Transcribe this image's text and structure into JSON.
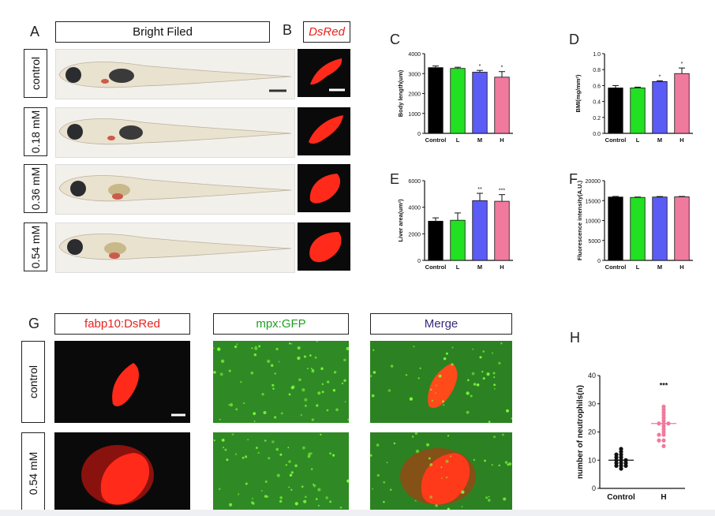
{
  "panelA": {
    "letter": "A",
    "header": "Bright Filed",
    "rows": [
      "control",
      "0.18 mM",
      "0.36 mM",
      "0.54 mM"
    ]
  },
  "panelB": {
    "letter": "B",
    "header": "DsRed",
    "header_color": "#e8231f"
  },
  "panelG": {
    "letter": "G",
    "headers": [
      {
        "text": "fabp10:DsRed",
        "color": "#e8231f"
      },
      {
        "text": "mpx:GFP",
        "color": "#1f9e1f"
      },
      {
        "text": "Merge",
        "color": "#3a2a7a"
      }
    ],
    "rows": [
      "control",
      "0.54 mM"
    ]
  },
  "colors": {
    "control": "#000000",
    "L": "#22e022",
    "M": "#5b5bf5",
    "H": "#f07a9e",
    "red_signal": "#ff2a1a",
    "green_dots": "#7dff3a"
  },
  "chart_data": [
    {
      "id": "C",
      "letter": "C",
      "type": "bar",
      "categories": [
        "Control",
        "L",
        "M",
        "H"
      ],
      "values": [
        3300,
        3260,
        3070,
        2820
      ],
      "errors": [
        80,
        60,
        90,
        280
      ],
      "significance": [
        "",
        "",
        "*",
        "*"
      ],
      "ylabel": "Body length(um)",
      "ylim": [
        0,
        4000
      ],
      "yticks": [
        0,
        1000,
        2000,
        3000,
        4000
      ]
    },
    {
      "id": "D",
      "letter": "D",
      "type": "bar",
      "categories": [
        "Control",
        "L",
        "M",
        "H"
      ],
      "values": [
        0.57,
        0.57,
        0.65,
        0.75
      ],
      "errors": [
        0.03,
        0.01,
        0.01,
        0.07
      ],
      "significance": [
        "",
        "",
        "*",
        "*"
      ],
      "ylabel": "BMI(mg/mm²)",
      "ylim": [
        0,
        1.0
      ],
      "yticks": [
        0.0,
        0.2,
        0.4,
        0.6,
        0.8,
        1.0
      ]
    },
    {
      "id": "E",
      "letter": "E",
      "type": "bar",
      "categories": [
        "Control",
        "L",
        "M",
        "H"
      ],
      "values": [
        2950,
        3020,
        4500,
        4450
      ],
      "errors": [
        250,
        550,
        550,
        500
      ],
      "significance": [
        "",
        "",
        "**",
        "***"
      ],
      "ylabel": "Liver area(um²)",
      "ylim": [
        0,
        6000
      ],
      "yticks": [
        0,
        2000,
        4000,
        6000
      ]
    },
    {
      "id": "F",
      "letter": "F",
      "type": "bar",
      "categories": [
        "Control",
        "L",
        "M",
        "H"
      ],
      "values": [
        15900,
        15800,
        15900,
        15950
      ],
      "errors": [
        150,
        100,
        120,
        100
      ],
      "significance": [
        "",
        "",
        "",
        ""
      ],
      "ylabel": "Fluorescence intensity(A.U.)",
      "ylim": [
        0,
        20000
      ],
      "yticks": [
        0,
        5000,
        10000,
        15000,
        20000
      ]
    },
    {
      "id": "H",
      "letter": "H",
      "type": "scatter",
      "categories": [
        "Control",
        "H"
      ],
      "series": [
        {
          "category": "Control",
          "points": [
            7,
            8,
            8,
            8,
            9,
            9,
            9,
            10,
            10,
            10,
            11,
            11,
            12,
            12,
            13,
            14
          ],
          "mean": 10
        },
        {
          "category": "H",
          "points": [
            15,
            17,
            17,
            19,
            19,
            20,
            21,
            22,
            23,
            23,
            23,
            24,
            25,
            26,
            27,
            28,
            29
          ],
          "mean": 23
        }
      ],
      "significance": [
        "",
        "***"
      ],
      "ylabel": "number of neutrophils(n)",
      "ylim": [
        0,
        40
      ],
      "yticks": [
        0,
        10,
        20,
        30,
        40
      ]
    }
  ]
}
